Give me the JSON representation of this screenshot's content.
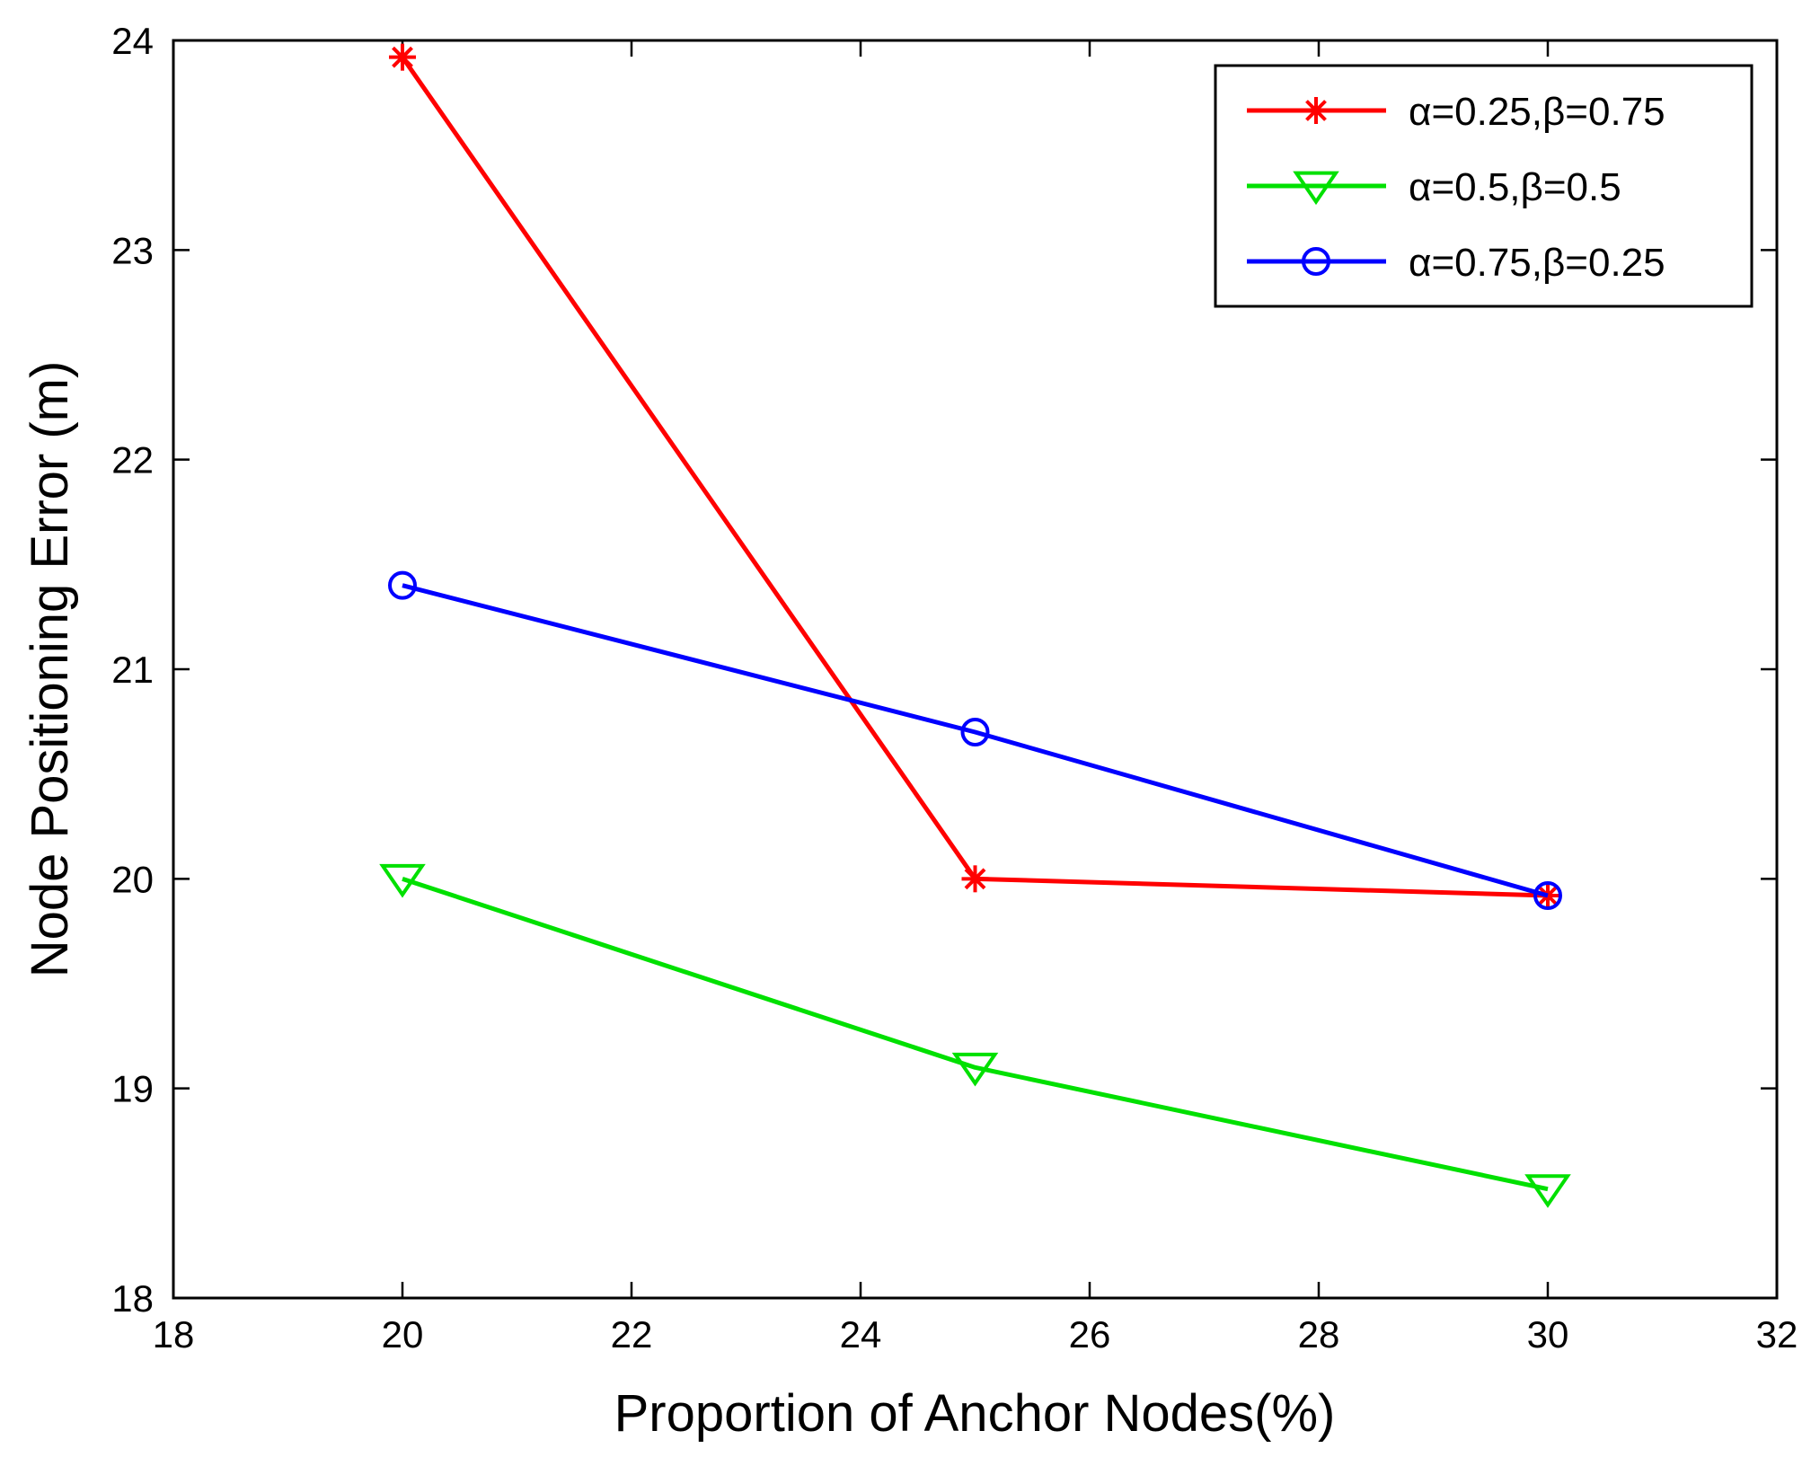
{
  "chart_data": {
    "type": "line",
    "title": "",
    "xlabel": "Proportion of Anchor Nodes(%)",
    "ylabel": "Node Positioning Error (m)",
    "xlim": [
      18,
      32
    ],
    "ylim": [
      18,
      24
    ],
    "xticks": [
      18,
      20,
      22,
      24,
      26,
      28,
      30,
      32
    ],
    "yticks": [
      18,
      19,
      20,
      21,
      22,
      23,
      24
    ],
    "grid": false,
    "legend_position": "top-right",
    "x": [
      20,
      25,
      30
    ],
    "series": [
      {
        "name": "α=0.25,β=0.75",
        "color": "#ff0000",
        "marker": "star",
        "values": [
          23.92,
          20.0,
          19.92
        ]
      },
      {
        "name": "α=0.5,β=0.5",
        "color": "#00e000",
        "marker": "triangle-down",
        "values": [
          20.0,
          19.1,
          18.52
        ]
      },
      {
        "name": "α=0.75,β=0.25",
        "color": "#0000ff",
        "marker": "circle",
        "values": [
          21.4,
          20.7,
          19.92
        ]
      }
    ]
  }
}
